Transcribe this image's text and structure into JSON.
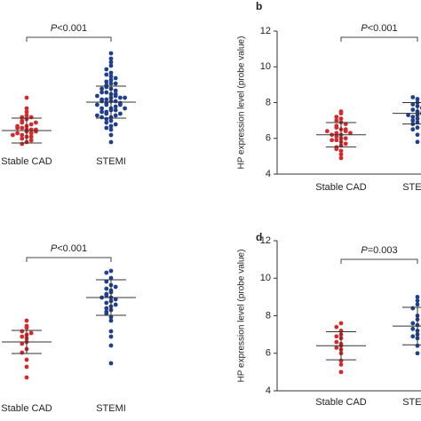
{
  "chart_data": [
    {
      "type": "strip",
      "p_symbol": "P",
      "p_value": "<0.001",
      "categories": [
        "Stable CAD",
        "STEMI"
      ],
      "ylim": [
        5,
        13
      ],
      "groups": [
        {
          "color": "#d42a2a",
          "mean": 6.15,
          "sd": 0.7,
          "values": [
            6.1,
            6.4,
            5.8,
            7.0,
            6.6,
            5.5,
            6.2,
            6.9,
            5.9,
            6.3,
            7.4,
            6.0,
            5.7,
            6.5,
            6.8,
            5.4,
            6.2,
            6.7,
            6.0,
            7.2,
            5.6,
            6.4,
            6.1,
            8.0,
            5.9,
            6.3,
            6.6,
            5.8,
            6.9,
            6.2
          ]
        },
        {
          "color": "#1f3f8f",
          "mean": 7.75,
          "sd": 0.9,
          "values": [
            7.8,
            8.2,
            7.4,
            9.0,
            6.9,
            8.5,
            7.6,
            10.5,
            7.1,
            8.0,
            6.4,
            8.8,
            7.9,
            7.3,
            9.4,
            6.7,
            8.3,
            7.7,
            5.5,
            8.6,
            7.2,
            9.8,
            7.5,
            8.1,
            6.2,
            8.9,
            7.0,
            7.8,
            9.2,
            6.6,
            8.4,
            7.4,
            10.0,
            7.9,
            6.9,
            8.2,
            7.6,
            5.9,
            8.7,
            7.3,
            9.6,
            7.1,
            8.0,
            6.5,
            8.5,
            7.8,
            9.1,
            7.0,
            8.3,
            6.8,
            7.6,
            10.2,
            7.4,
            8.1,
            6.3,
            8.8,
            7.7,
            9.3,
            7.2,
            8.0
          ]
        }
      ]
    },
    {
      "type": "strip",
      "panel_label": "b",
      "ylabel": "HP expression level (probe value)",
      "p_symbol": "P",
      "p_value": "<0.001",
      "categories": [
        "Stable CAD",
        "STEMI"
      ],
      "ylim": [
        4,
        12
      ],
      "yticks": [
        4,
        6,
        8,
        10,
        12
      ],
      "groups": [
        {
          "color": "#d42a2a",
          "mean": 6.2,
          "sd": 0.68,
          "values": [
            6.2,
            5.8,
            6.9,
            5.3,
            6.5,
            7.1,
            5.9,
            6.3,
            4.9,
            6.7,
            6.0,
            7.4,
            5.6,
            6.4,
            6.1,
            7.0,
            5.4,
            6.6,
            6.2,
            5.7,
            6.8,
            5.1,
            6.3,
            7.5,
            5.9,
            6.5,
            6.0,
            7.2,
            5.5,
            6.4
          ]
        },
        {
          "color": "#1f3f8f",
          "mean": 7.4,
          "sd": 0.6,
          "values": [
            7.3,
            7.8,
            6.9,
            8.2,
            7.1,
            7.5,
            6.6,
            7.9,
            7.2,
            8.0,
            6.2,
            7.6,
            7.4,
            6.8,
            8.3,
            7.0,
            5.8,
            7.7,
            7.3,
            6.5
          ]
        }
      ]
    },
    {
      "type": "strip",
      "p_symbol": "P",
      "p_value": "<0.001",
      "categories": [
        "Stable CAD",
        "STEMI"
      ],
      "ylim": [
        4,
        12
      ],
      "groups": [
        {
          "color": "#d42a2a",
          "mean": 7.0,
          "sd": 0.65,
          "values": [
            7.4,
            7.0,
            7.8,
            6.6,
            8.2,
            7.2,
            5.0,
            7.6,
            6.4,
            7.3,
            6.0,
            7.9,
            5.6,
            6.9,
            7.5
          ]
        },
        {
          "color": "#1f3f8f",
          "mean": 9.5,
          "sd": 1.0,
          "values": [
            9.5,
            10.2,
            8.8,
            11.0,
            9.0,
            9.8,
            8.4,
            10.6,
            9.3,
            7.6,
            9.9,
            8.9,
            10.4,
            9.1,
            6.8,
            9.6,
            8.6,
            10.0,
            9.4,
            5.8,
            9.7,
            8.2,
            10.9,
            9.2,
            8.7,
            9.5,
            7.3,
            10.1
          ]
        }
      ]
    },
    {
      "type": "strip",
      "panel_label": "d",
      "ylabel": "HP expression level (probe value)",
      "p_symbol": "P",
      "p_value": "=0.003",
      "categories": [
        "Stable CAD",
        "STEMI"
      ],
      "ylim": [
        4,
        12
      ],
      "yticks": [
        4,
        6,
        8,
        10,
        12
      ],
      "groups": [
        {
          "color": "#d42a2a",
          "mean": 6.4,
          "sd": 0.75,
          "values": [
            6.5,
            7.2,
            6.0,
            7.6,
            6.8,
            5.6,
            6.4,
            7.0,
            5.0,
            6.6,
            6.2,
            7.4,
            5.4,
            6.9,
            6.3
          ]
        },
        {
          "color": "#1f3f8f",
          "mean": 7.45,
          "sd": 1.0,
          "values": [
            7.5,
            8.6,
            6.8,
            8.0,
            7.2,
            9.0,
            6.4,
            7.8,
            8.4,
            7.0,
            6.0,
            7.6,
            8.8,
            7.3,
            6.9
          ]
        }
      ]
    }
  ]
}
